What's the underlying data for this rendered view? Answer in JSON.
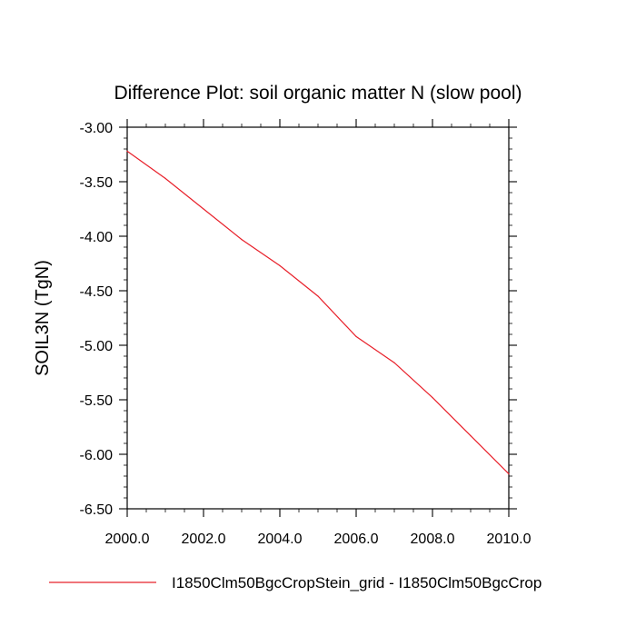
{
  "chart_data": {
    "type": "line",
    "title": "Difference Plot: soil organic matter N (slow pool)",
    "xlabel": "",
    "ylabel": "SOIL3N  (TgN)",
    "xlim": [
      2000,
      2010
    ],
    "ylim": [
      -6.5,
      -3.0
    ],
    "x_ticks": [
      2000,
      2002,
      2004,
      2006,
      2008,
      2010
    ],
    "x_tick_labels": [
      "2000.0",
      "2002.0",
      "2004.0",
      "2006.0",
      "2008.0",
      "2010.0"
    ],
    "y_ticks": [
      -3.0,
      -3.5,
      -4.0,
      -4.5,
      -5.0,
      -5.5,
      -6.0,
      -6.5
    ],
    "y_tick_labels": [
      "-3.00",
      "-3.50",
      "-4.00",
      "-4.50",
      "-5.00",
      "-5.50",
      "-6.00",
      "-6.50"
    ],
    "grid": false,
    "legend_position": "bottom",
    "series": [
      {
        "name": "I1850Clm50BgcCropStein_grid - I1850Clm50BgcCrop",
        "color": "#e8202a",
        "x": [
          2000,
          2001,
          2002,
          2003,
          2004,
          2005,
          2006,
          2007,
          2008,
          2009,
          2010
        ],
        "y": [
          -3.22,
          -3.47,
          -3.75,
          -4.03,
          -4.27,
          -4.55,
          -4.92,
          -5.16,
          -5.48,
          -5.83,
          -6.18
        ]
      }
    ]
  }
}
